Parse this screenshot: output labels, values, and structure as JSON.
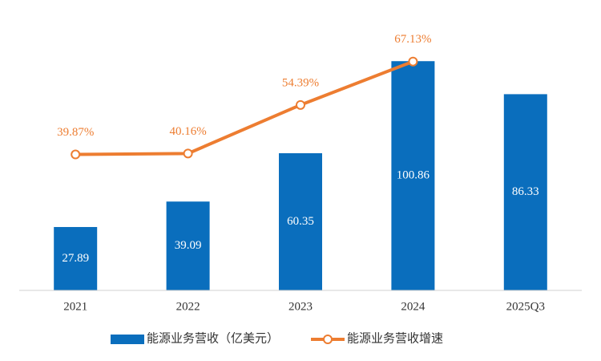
{
  "chart_data": {
    "type": "bar-line",
    "categories": [
      "2021",
      "2022",
      "2023",
      "2024",
      "2025Q3"
    ],
    "series": [
      {
        "name": "能源业务营收（亿美元）",
        "type": "bar",
        "color": "#0a6ebd",
        "values": [
          27.89,
          39.09,
          60.35,
          100.86,
          86.33
        ]
      },
      {
        "name": "能源业务营收增速",
        "type": "line",
        "axis": "y2",
        "color": "#ed7d31",
        "values": [
          39.87,
          40.16,
          54.39,
          67.13,
          null
        ],
        "value_labels": [
          "39.87%",
          "40.16%",
          "54.39%",
          "67.13%",
          null
        ]
      }
    ],
    "ylim": [
      0,
      120
    ],
    "y2lim": [
      0,
      80
    ],
    "legend": "bottom"
  }
}
